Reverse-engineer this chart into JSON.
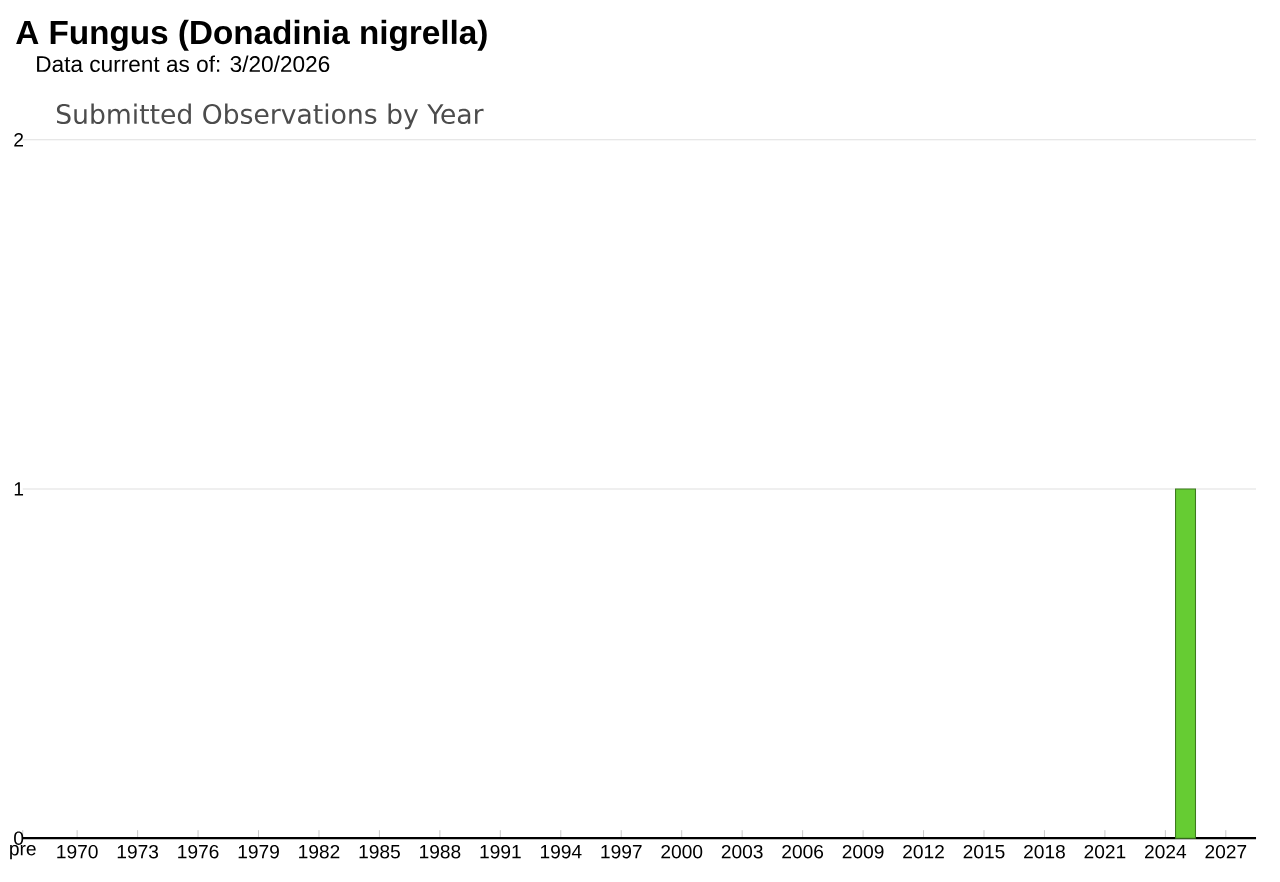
{
  "chart_data": {
    "type": "bar",
    "title": "A Fungus   (Donadinia nigrella)",
    "subtitle": "Data current as of: 3/20/2026",
    "annotations": [
      "Submitted Observations by Year"
    ],
    "x": [
      2025
    ],
    "values": [
      1
    ],
    "color": "#66cc33",
    "xlim": [
      1967.3,
      2028.5
    ],
    "xticks": [
      {
        "value": 1967.3,
        "label": "pre"
      },
      1970,
      1973,
      1976,
      1979,
      1982,
      1985,
      1988,
      1991,
      1994,
      1997,
      2000,
      2003,
      2006,
      2009,
      2012,
      2015,
      2018,
      2021,
      2024,
      2027
    ],
    "ylim": [
      0,
      2
    ],
    "yticks": [
      0,
      1,
      2
    ],
    "grid": "y"
  }
}
